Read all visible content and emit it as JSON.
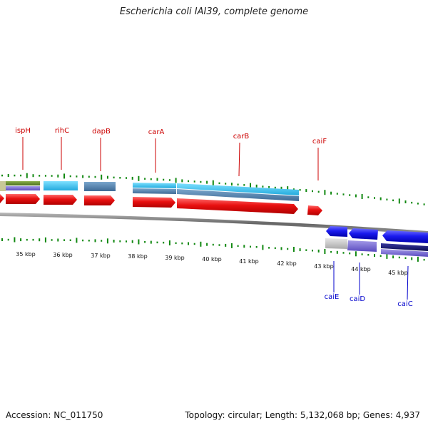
{
  "title": "Escherichia coli IAI39, complete genome",
  "accession_text": "Accession: NC_011750",
  "summary_text": "Topology: circular; Length: 5,132,068 bp; Genes: 4,937",
  "kbp_labels": [
    "35 kbp",
    "36 kbp",
    "37 kbp",
    "38 kbp",
    "39 kbp",
    "40 kbp",
    "41 kbp",
    "42 kbp",
    "43 kbp",
    "44 kbp",
    "45 kbp"
  ],
  "forward_gene_labels": [
    "ispH",
    "rihC",
    "dapB",
    "carA",
    "carB",
    "caiF"
  ],
  "reverse_gene_labels": [
    "caiE",
    "caiD",
    "caiC"
  ],
  "colors": {
    "forward_label": "#cc0000",
    "reverse_label": "#0000cc",
    "cds_forward": "#ee1111",
    "cds_reverse": "#1a1aee",
    "gc_tick": "#118811",
    "backbone": "#777777"
  }
}
